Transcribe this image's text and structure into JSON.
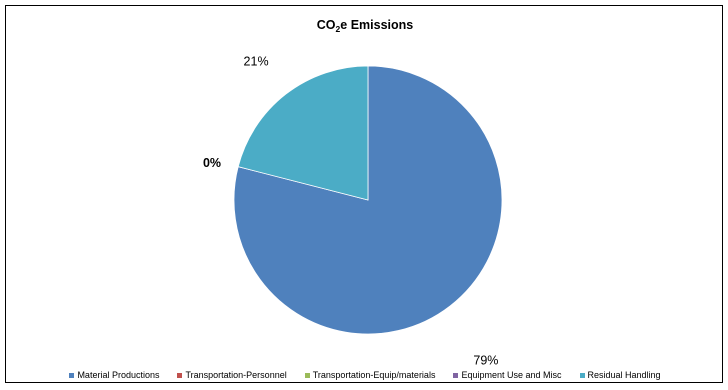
{
  "chart_data": {
    "type": "pie",
    "title": {
      "main": "CO",
      "sub": "2",
      "rest": "e Emissions"
    },
    "slices": [
      {
        "name": "Material Productions",
        "value": 79,
        "label": "79%",
        "color": "#4F81BD"
      },
      {
        "name": "Transportation-Personnel",
        "value": 0,
        "label": "",
        "color": "#C0504D"
      },
      {
        "name": "Transportation-Equip/materials",
        "value": 0,
        "label": "",
        "color": "#9BBB59"
      },
      {
        "name": "Equipment Use and Misc",
        "value": 0,
        "label": "0%",
        "color": "#8064A2"
      },
      {
        "name": "Residual Handling",
        "value": 21,
        "label": "21%",
        "color": "#4BACC6"
      }
    ],
    "legend_position": "bottom"
  }
}
